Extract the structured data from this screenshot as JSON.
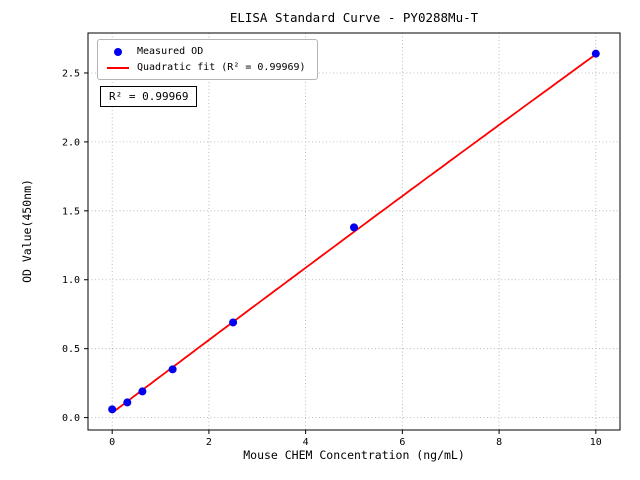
{
  "chart_data": {
    "type": "scatter",
    "title": "ELISA Standard Curve - PY0288Mu-T",
    "xlabel": "Mouse CHEM Concentration (ng/mL)",
    "ylabel": "OD Value(450nm)",
    "xlim": [
      -0.5,
      10.5
    ],
    "ylim": [
      -0.09,
      2.79
    ],
    "x_ticks": [
      0,
      2,
      4,
      6,
      8,
      10
    ],
    "y_ticks": [
      0.0,
      0.5,
      1.0,
      1.5,
      2.0,
      2.5
    ],
    "grid": "dotted",
    "legend_position": "upper-left",
    "series": [
      {
        "name": "Measured OD",
        "kind": "scatter",
        "color": "#0000ee",
        "x": [
          0,
          0.313,
          0.625,
          1.25,
          2.5,
          5,
          10
        ],
        "y": [
          0.06,
          0.11,
          0.19,
          0.35,
          0.69,
          1.38,
          2.64
        ]
      },
      {
        "name": "Quadratic fit (R² = 0.99969)",
        "kind": "line",
        "color": "#ff0000",
        "fit": {
          "kind": "quadratic",
          "coefficients": [
            0.035,
            0.265,
            -0.0005
          ],
          "x_range": [
            0,
            10
          ]
        }
      }
    ],
    "annotation": "R² = 0.99969",
    "r_squared": 0.99969
  },
  "colors": {
    "point": "#0000ee",
    "line": "#ff0000",
    "grid": "#ababab",
    "frame": "#000000",
    "background": "#ffffff"
  }
}
